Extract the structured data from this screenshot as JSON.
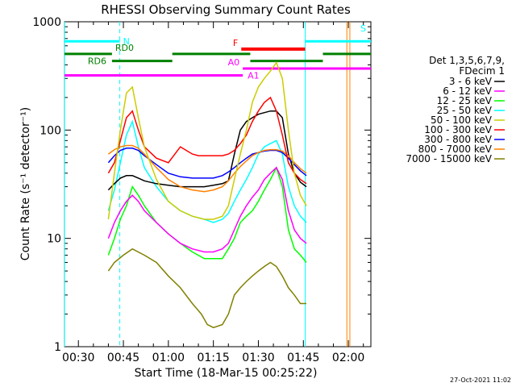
{
  "chart_data": {
    "type": "line",
    "title": "RHESSI Observing Summary Count Rates",
    "xlabel": "Start Time (18-Mar-15 00:25:22)",
    "ylabel": "Count Rate (s⁻¹ detector⁻¹)",
    "yscale": "log",
    "ylim": [
      1,
      1000
    ],
    "xlim_minutes": [
      25.37,
      127.5
    ],
    "y_ticks": [
      {
        "value": 1,
        "label": "1"
      },
      {
        "value": 10,
        "label": "10"
      },
      {
        "value": 100,
        "label": "100"
      },
      {
        "value": 1000,
        "label": "1000"
      }
    ],
    "x_ticks": [
      {
        "minutes": 30,
        "label": "00:30"
      },
      {
        "minutes": 45,
        "label": "00:45"
      },
      {
        "minutes": 60,
        "label": "01:00"
      },
      {
        "minutes": 75,
        "label": "01:15"
      },
      {
        "minutes": 90,
        "label": "01:30"
      },
      {
        "minutes": 105,
        "label": "01:45"
      },
      {
        "minutes": 120,
        "label": "02:00"
      }
    ],
    "legend": {
      "placement": "right",
      "header": [
        "Det 1,3,5,6,7,9,",
        "FDecim 1"
      ],
      "entries": [
        {
          "label": "3 - 6 keV",
          "color": "#000000"
        },
        {
          "label": "6 - 12 keV",
          "color": "#ff00ff"
        },
        {
          "label": "12 - 25 keV",
          "color": "#00ff00"
        },
        {
          "label": "25 - 50 keV",
          "color": "#00ffff"
        },
        {
          "label": "50 - 100 keV",
          "color": "#cccc00"
        },
        {
          "label": "100 - 300 keV",
          "color": "#ff0000"
        },
        {
          "label": "300 - 800 keV",
          "color": "#0000ff"
        },
        {
          "label": "800 - 7000 keV",
          "color": "#ff8000"
        },
        {
          "label": "7000 - 15000 keV",
          "color": "#808000"
        }
      ]
    },
    "series": [
      {
        "color": "#808000",
        "x": [
          40,
          42,
          45,
          48,
          52,
          56,
          60,
          64,
          68,
          71,
          73,
          75,
          78,
          80,
          82,
          84,
          86,
          88,
          90,
          92,
          94,
          96,
          98,
          100,
          102,
          104,
          106
        ],
        "y": [
          5,
          6,
          7,
          8,
          7,
          6,
          4.5,
          3.5,
          2.5,
          2,
          1.6,
          1.5,
          1.6,
          2,
          3,
          3.5,
          4,
          4.5,
          5,
          5.5,
          6,
          5.5,
          4.5,
          3.5,
          3,
          2.5,
          2.5
        ]
      },
      {
        "color": "#00ff00",
        "x": [
          40,
          42,
          44,
          46,
          48,
          50,
          52,
          56,
          60,
          64,
          68,
          72,
          75,
          78,
          80,
          82,
          84,
          86,
          88,
          90,
          92,
          94,
          96,
          98,
          100,
          102,
          104,
          106
        ],
        "y": [
          7,
          10,
          15,
          20,
          30,
          25,
          20,
          14,
          11,
          9,
          7.5,
          6.5,
          6.5,
          6.5,
          8,
          10,
          14,
          16,
          18,
          22,
          28,
          35,
          45,
          30,
          12,
          8,
          7,
          6
        ]
      },
      {
        "color": "#ff00ff",
        "x": [
          40,
          42,
          44,
          46,
          48,
          50,
          52,
          56,
          60,
          64,
          68,
          72,
          75,
          78,
          80,
          82,
          84,
          86,
          88,
          90,
          92,
          94,
          96,
          98,
          100,
          102,
          104,
          106
        ],
        "y": [
          10,
          14,
          18,
          22,
          25,
          22,
          18,
          14,
          11,
          9,
          8,
          7.5,
          7.5,
          8,
          9,
          12,
          16,
          20,
          24,
          28,
          35,
          40,
          45,
          35,
          18,
          12,
          10,
          9
        ]
      },
      {
        "color": "#00ffff",
        "x": [
          40,
          42,
          44,
          46,
          48,
          50,
          52,
          56,
          60,
          64,
          68,
          72,
          75,
          78,
          80,
          82,
          84,
          86,
          88,
          90,
          92,
          94,
          96,
          98,
          100,
          102,
          104,
          106
        ],
        "y": [
          18,
          28,
          50,
          90,
          120,
          70,
          45,
          30,
          22,
          18,
          16,
          15,
          14,
          15,
          17,
          22,
          28,
          35,
          45,
          60,
          70,
          75,
          80,
          60,
          30,
          20,
          16,
          14
        ]
      },
      {
        "color": "#000000",
        "x": [
          40,
          42,
          44,
          46,
          48,
          50,
          52,
          56,
          60,
          64,
          68,
          72,
          75,
          78,
          80,
          82,
          84,
          86,
          88,
          90,
          92,
          94,
          96,
          98,
          100,
          102,
          104,
          106
        ],
        "y": [
          28,
          32,
          36,
          38,
          38,
          36,
          34,
          32,
          31,
          30,
          30,
          30,
          31,
          32,
          34,
          60,
          100,
          120,
          130,
          140,
          145,
          150,
          150,
          130,
          60,
          40,
          33,
          30
        ]
      },
      {
        "color": "#0000ff",
        "x": [
          40,
          42,
          44,
          46,
          48,
          50,
          52,
          56,
          60,
          64,
          68,
          72,
          75,
          78,
          80,
          82,
          84,
          86,
          88,
          90,
          92,
          94,
          96,
          98,
          100,
          102,
          104,
          106
        ],
        "y": [
          50,
          58,
          65,
          68,
          68,
          65,
          58,
          48,
          40,
          37,
          36,
          36,
          36,
          38,
          41,
          45,
          50,
          55,
          60,
          62,
          64,
          65,
          65,
          62,
          55,
          48,
          42,
          38
        ]
      },
      {
        "color": "#ff8000",
        "x": [
          40,
          42,
          44,
          46,
          48,
          50,
          52,
          56,
          60,
          64,
          68,
          72,
          75,
          78,
          80,
          82,
          84,
          86,
          88,
          90,
          92,
          94,
          96,
          98,
          100,
          102,
          104,
          106
        ],
        "y": [
          60,
          66,
          70,
          72,
          72,
          68,
          60,
          45,
          35,
          30,
          28,
          27,
          28,
          30,
          34,
          40,
          46,
          52,
          58,
          62,
          65,
          66,
          66,
          64,
          58,
          50,
          44,
          40
        ]
      },
      {
        "color": "#ff0000",
        "x": [
          40,
          42,
          44,
          46,
          48,
          50,
          52,
          56,
          60,
          64,
          68,
          70,
          72,
          75,
          78,
          80,
          82,
          84,
          86,
          88,
          90,
          92,
          94,
          96,
          98,
          100,
          102,
          104,
          106
        ],
        "y": [
          40,
          50,
          80,
          130,
          150,
          100,
          70,
          55,
          50,
          70,
          60,
          58,
          58,
          58,
          58,
          60,
          65,
          75,
          90,
          120,
          150,
          180,
          200,
          150,
          90,
          50,
          40,
          35,
          32
        ]
      },
      {
        "color": "#cccc00",
        "x": [
          40,
          42,
          44,
          46,
          48,
          50,
          52,
          56,
          60,
          64,
          68,
          72,
          75,
          78,
          80,
          82,
          84,
          86,
          88,
          90,
          92,
          94,
          96,
          98,
          100,
          102,
          104,
          106
        ],
        "y": [
          15,
          40,
          100,
          220,
          250,
          130,
          70,
          35,
          22,
          18,
          16,
          15,
          15,
          16,
          20,
          35,
          60,
          100,
          180,
          250,
          300,
          350,
          420,
          300,
          100,
          40,
          25,
          20
        ]
      }
    ],
    "attenuator_bars": [
      {
        "label": "N",
        "color": "#00ffff",
        "start": 25.4,
        "end": 43.8,
        "y": 660
      },
      {
        "label": "S",
        "color": "#00ffff",
        "start": 105.6,
        "end": 127.5,
        "y": 660
      },
      {
        "label": "F",
        "color": "#ff0000",
        "start": 84.3,
        "end": 105.6,
        "y": 560
      },
      {
        "label": "RD0",
        "color": "#008000",
        "start": 25.4,
        "end": 41.2,
        "y": 505
      },
      {
        "label": "RD0",
        "color": "#008000",
        "start": 61.3,
        "end": 87.3,
        "y": 505
      },
      {
        "label": "RD0",
        "color": "#008000",
        "start": 111.5,
        "end": 127.5,
        "y": 505
      },
      {
        "label": "RD6",
        "color": "#008000",
        "start": 41.2,
        "end": 61.3,
        "y": 435
      },
      {
        "label": "RD6",
        "color": "#008000",
        "start": 87.3,
        "end": 111.5,
        "y": 435
      },
      {
        "label": "A0",
        "color": "#ff00ff",
        "start": 84.8,
        "end": 127.5,
        "y": 370
      },
      {
        "label": "A1",
        "color": "#ff00ff",
        "start": 25.4,
        "end": 84.8,
        "y": 320
      }
    ],
    "vertical_markers": [
      {
        "color": "#00ffff",
        "minutes": 25.4,
        "style": "solid"
      },
      {
        "color": "#00ffff",
        "minutes": 43.8,
        "style": "dashed"
      },
      {
        "color": "#00ffff",
        "minutes": 105.6,
        "style": "solid"
      },
      {
        "color": "#ff8000",
        "minutes": 119.5,
        "style": "solid"
      },
      {
        "color": "#ff8000",
        "minutes": 120.5,
        "style": "solid"
      }
    ],
    "labels": {
      "N": "N",
      "S": "S",
      "F": "F",
      "RD0": "RD0",
      "RD6": "RD6",
      "A0": "A0",
      "A1": "A1"
    },
    "footer_date": "27-Oct-2021 11:02"
  }
}
